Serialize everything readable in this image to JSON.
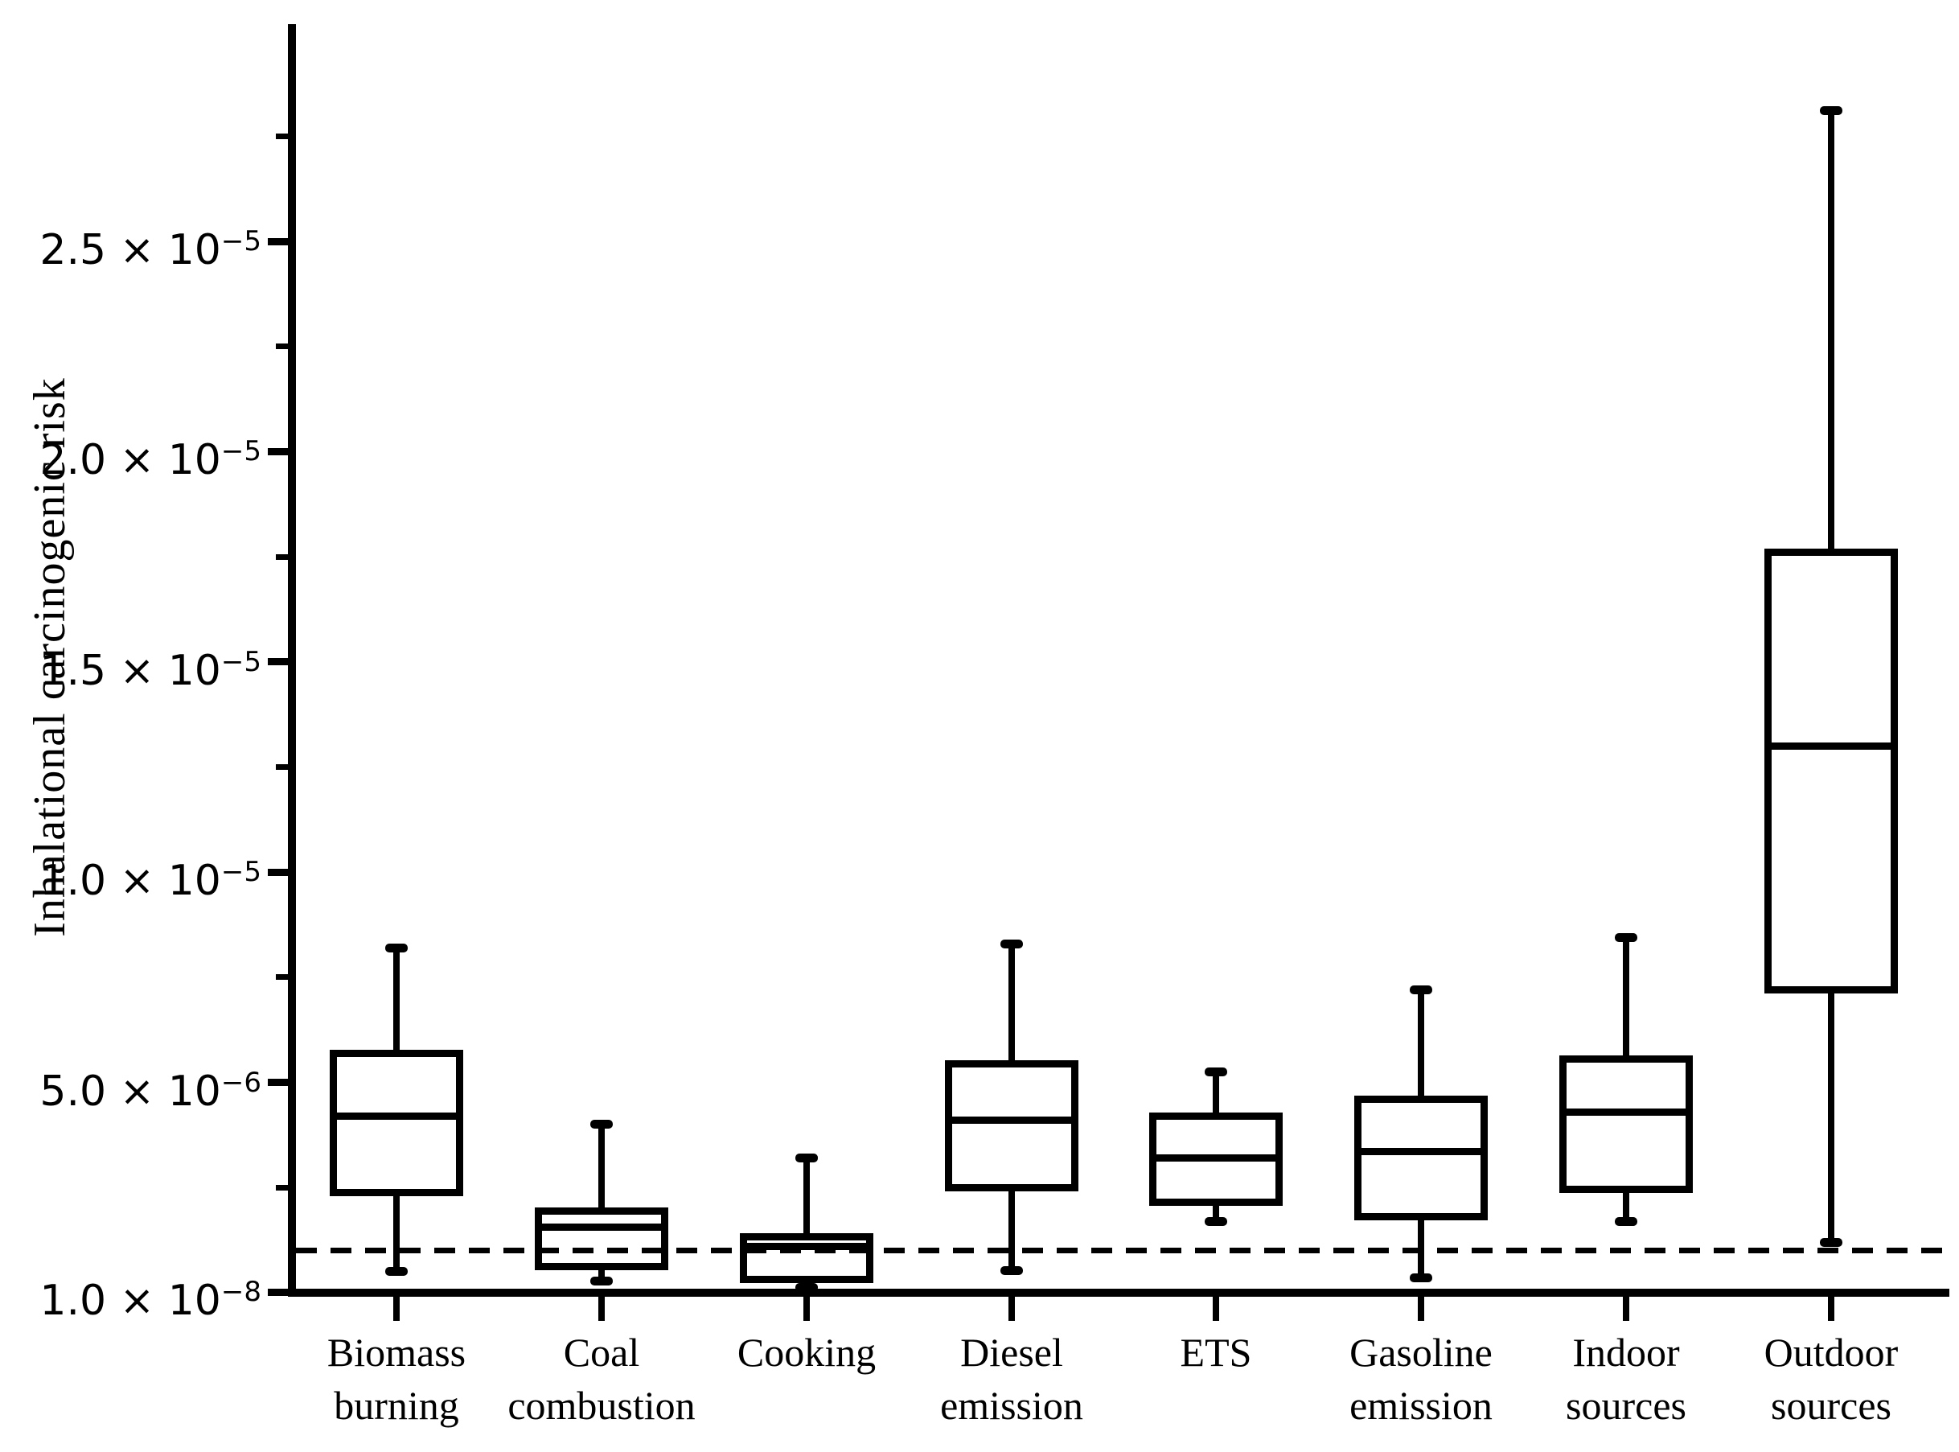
{
  "figure": {
    "background_color": "#ffffff",
    "stroke_color": "#000000"
  },
  "chart_data": {
    "type": "box",
    "title": "",
    "xlabel": "",
    "ylabel": "Inhalational carcinogenic risk",
    "unit": "1e-6",
    "ylim": [
      0,
      30.2
    ],
    "grid": false,
    "legend": null,
    "categories": [
      "Biomass burning",
      "Coal combustion",
      "Cooking",
      "Diesel emission",
      "ETS",
      "Gasoline emission",
      "Indoor sources",
      "Outdoor sources"
    ],
    "category_label_lines": [
      [
        "Biomass",
        "burning"
      ],
      [
        "Coal",
        "combustion"
      ],
      [
        "Cooking"
      ],
      [
        "Diesel",
        "emission"
      ],
      [
        "ETS"
      ],
      [
        "Gasoline",
        "emission"
      ],
      [
        "Indoor",
        "sources"
      ],
      [
        "Outdoor",
        "sources"
      ]
    ],
    "series": [
      {
        "name": "Biomass burning",
        "whisker_low": 0.5,
        "q1": 2.4,
        "median": 4.2,
        "q3": 5.7,
        "whisker_high": 8.2
      },
      {
        "name": "Coal combustion",
        "whisker_low": 0.27,
        "q1": 0.63,
        "median": 1.55,
        "q3": 1.95,
        "whisker_high": 4.0
      },
      {
        "name": "Cooking",
        "whisker_low": 0.13,
        "q1": 0.3,
        "median": 1.1,
        "q3": 1.32,
        "whisker_high": 3.2
      },
      {
        "name": "Diesel emission",
        "whisker_low": 0.52,
        "q1": 2.5,
        "median": 4.1,
        "q3": 5.45,
        "whisker_high": 8.3
      },
      {
        "name": "ETS",
        "whisker_low": 1.7,
        "q1": 2.15,
        "median": 3.2,
        "q3": 4.2,
        "whisker_high": 5.25
      },
      {
        "name": "Gasoline emission",
        "whisker_low": 0.35,
        "q1": 1.8,
        "median": 3.35,
        "q3": 4.6,
        "whisker_high": 7.2
      },
      {
        "name": "Indoor sources",
        "whisker_low": 1.7,
        "q1": 2.45,
        "median": 4.3,
        "q3": 5.55,
        "whisker_high": 8.45
      },
      {
        "name": "Outdoor sources",
        "whisker_low": 1.2,
        "q1": 7.2,
        "median": 13.0,
        "q3": 17.6,
        "whisker_high": 28.1
      }
    ],
    "y_ticks": [
      {
        "value": 25,
        "mantissa": "2.5 × 10",
        "exponent": "−5"
      },
      {
        "value": 20,
        "mantissa": "2.0 × 10",
        "exponent": "−5"
      },
      {
        "value": 15,
        "mantissa": "1.5 × 10",
        "exponent": "−5"
      },
      {
        "value": 10,
        "mantissa": "1.0 × 10",
        "exponent": "−5"
      },
      {
        "value": 5,
        "mantissa": "5.0 × 10",
        "exponent": "−6"
      },
      {
        "value": 0.01,
        "mantissa": "1.0 × 10",
        "exponent": "−8"
      }
    ],
    "minor_tick_values": [
      27.5,
      22.5,
      17.5,
      12.5,
      7.5,
      2.5
    ],
    "reference_line": {
      "value": 1.0,
      "style": "dashed"
    }
  }
}
